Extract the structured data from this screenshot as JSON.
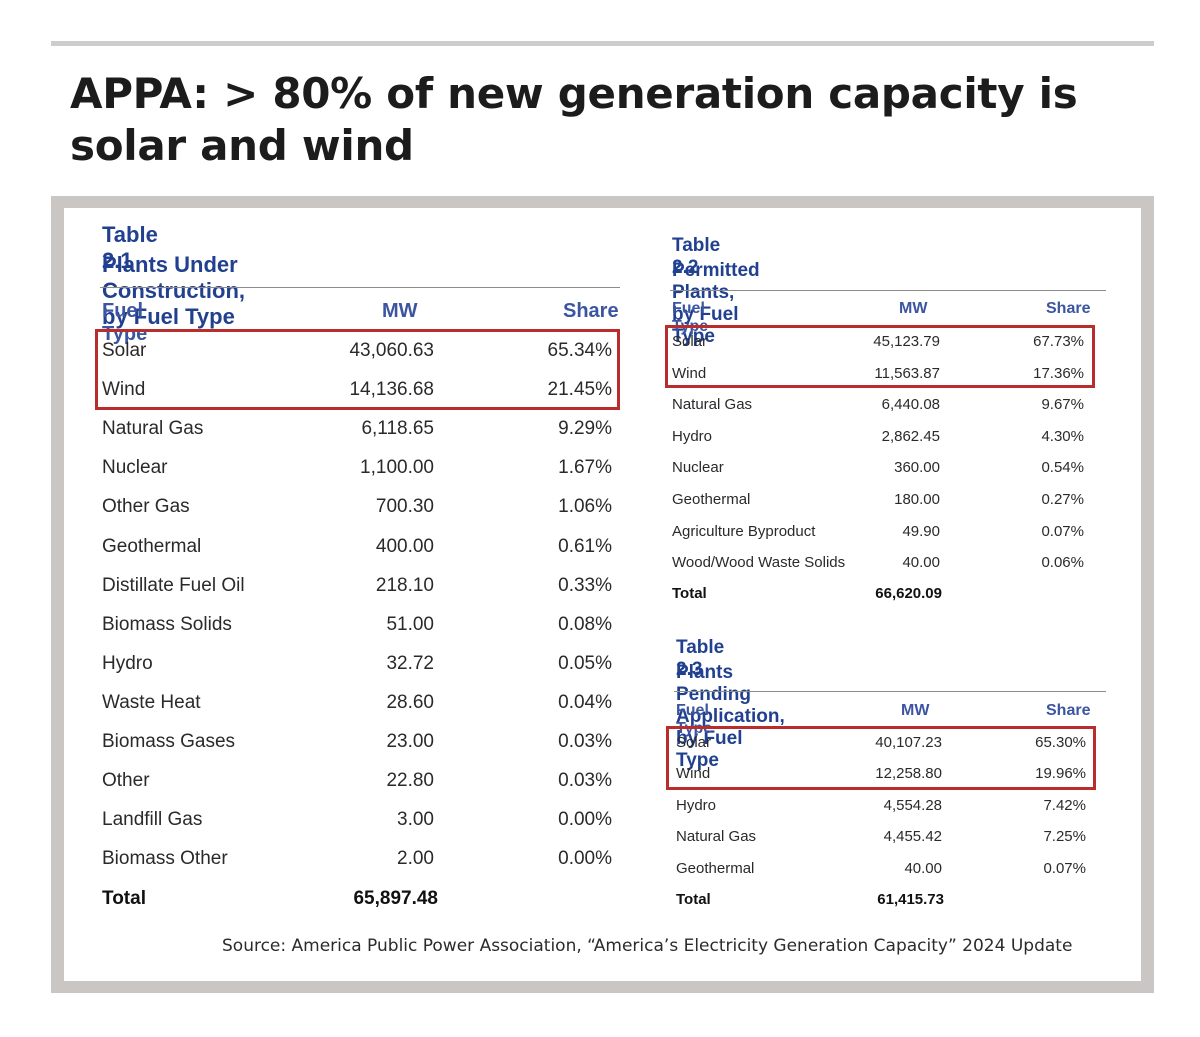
{
  "headline": "APPA: > 80% of new generation capacity is solar and wind",
  "highlight_color": "#b92d2d",
  "accent_color": "#21408f",
  "table_2_1": {
    "number": "Table 2.1",
    "title": "Plants Under Construction, by Fuel Type",
    "headers": [
      "Fuel Type",
      "MW",
      "Share"
    ],
    "rows": [
      {
        "fuel": "Solar",
        "mw": "43,060.63",
        "share": "65.34%"
      },
      {
        "fuel": "Wind",
        "mw": "14,136.68",
        "share": "21.45%"
      },
      {
        "fuel": "Natural Gas",
        "mw": "6,118.65",
        "share": "9.29%"
      },
      {
        "fuel": "Nuclear",
        "mw": "1,100.00",
        "share": "1.67%"
      },
      {
        "fuel": "Other Gas",
        "mw": "700.30",
        "share": "1.06%"
      },
      {
        "fuel": "Geothermal",
        "mw": "400.00",
        "share": "0.61%"
      },
      {
        "fuel": "Distillate Fuel Oil",
        "mw": "218.10",
        "share": "0.33%"
      },
      {
        "fuel": "Biomass Solids",
        "mw": "51.00",
        "share": "0.08%"
      },
      {
        "fuel": "Hydro",
        "mw": "32.72",
        "share": "0.05%"
      },
      {
        "fuel": "Waste Heat",
        "mw": "28.60",
        "share": "0.04%"
      },
      {
        "fuel": "Biomass Gases",
        "mw": "23.00",
        "share": "0.03%"
      },
      {
        "fuel": "Other",
        "mw": "22.80",
        "share": "0.03%"
      },
      {
        "fuel": "Landfill Gas",
        "mw": "3.00",
        "share": "0.00%"
      },
      {
        "fuel": "Biomass Other",
        "mw": "2.00",
        "share": "0.00%"
      }
    ],
    "total_label": "Total",
    "total_mw": "65,897.48"
  },
  "table_2_2": {
    "number": "Table 2.2",
    "title": "Permitted Plants, by Fuel Type",
    "headers": [
      "Fuel Type",
      "MW",
      "Share"
    ],
    "rows": [
      {
        "fuel": "Solar",
        "mw": "45,123.79",
        "share": "67.73%"
      },
      {
        "fuel": "Wind",
        "mw": "11,563.87",
        "share": "17.36%"
      },
      {
        "fuel": "Natural Gas",
        "mw": "6,440.08",
        "share": "9.67%"
      },
      {
        "fuel": "Hydro",
        "mw": "2,862.45",
        "share": "4.30%"
      },
      {
        "fuel": "Nuclear",
        "mw": "360.00",
        "share": "0.54%"
      },
      {
        "fuel": "Geothermal",
        "mw": "180.00",
        "share": "0.27%"
      },
      {
        "fuel": "Agriculture Byproduct",
        "mw": "49.90",
        "share": "0.07%"
      },
      {
        "fuel": "Wood/Wood Waste Solids",
        "mw": "40.00",
        "share": "0.06%"
      }
    ],
    "total_label": "Total",
    "total_mw": "66,620.09"
  },
  "table_2_3": {
    "number": "Table 2.3",
    "title": "Plants Pending Application, by Fuel Type",
    "headers": [
      "Fuel Type",
      "MW",
      "Share"
    ],
    "rows": [
      {
        "fuel": "Solar",
        "mw": "40,107.23",
        "share": "65.30%"
      },
      {
        "fuel": "Wind",
        "mw": "12,258.80",
        "share": "19.96%"
      },
      {
        "fuel": "Hydro",
        "mw": "4,554.28",
        "share": "7.42%"
      },
      {
        "fuel": "Natural Gas",
        "mw": "4,455.42",
        "share": "7.25%"
      },
      {
        "fuel": "Geothermal",
        "mw": "40.00",
        "share": "0.07%"
      }
    ],
    "total_label": "Total",
    "total_mw": "61,415.73"
  },
  "source": "Source: America Public Power Association, “America’s Electricity Generation Capacity” 2024 Update"
}
